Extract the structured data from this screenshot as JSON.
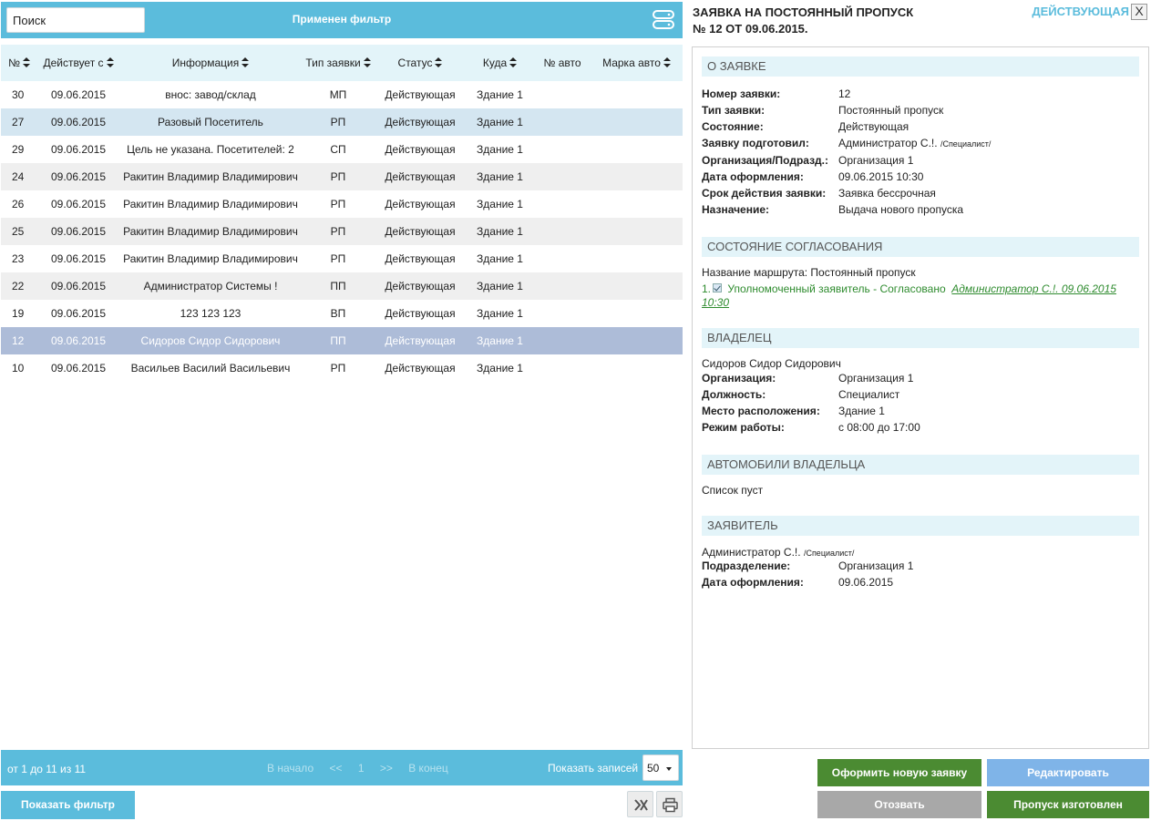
{
  "search": {
    "placeholder": "Поиск",
    "value": ""
  },
  "topbar": {
    "filter_title": "Применен фильтр",
    "db_icon": "database-icon"
  },
  "table": {
    "columns": [
      "№",
      "Действует с",
      "Информация",
      "Тип заявки",
      "Статус",
      "Куда",
      "№ авто",
      "Марка авто"
    ],
    "rows": [
      {
        "num": "30",
        "date": "09.06.2015",
        "info": "внос: завод/склад",
        "type": "МП",
        "status": "Действующая",
        "dest": "Здание 1",
        "auto_num": "",
        "auto_brand": ""
      },
      {
        "num": "27",
        "date": "09.06.2015",
        "info": "Разовый Посетитель",
        "type": "РП",
        "status": "Действующая",
        "dest": "Здание 1",
        "auto_num": "",
        "auto_brand": ""
      },
      {
        "num": "29",
        "date": "09.06.2015",
        "info": "Цель не указана. Посетителей: 2",
        "type": "СП",
        "status": "Действующая",
        "dest": "Здание 1",
        "auto_num": "",
        "auto_brand": ""
      },
      {
        "num": "24",
        "date": "09.06.2015",
        "info": "Ракитин Владимир Владимирович",
        "type": "РП",
        "status": "Действующая",
        "dest": "Здание 1",
        "auto_num": "",
        "auto_brand": ""
      },
      {
        "num": "26",
        "date": "09.06.2015",
        "info": "Ракитин Владимир Владимирович",
        "type": "РП",
        "status": "Действующая",
        "dest": "Здание 1",
        "auto_num": "",
        "auto_brand": ""
      },
      {
        "num": "25",
        "date": "09.06.2015",
        "info": "Ракитин Владимир Владимирович",
        "type": "РП",
        "status": "Действующая",
        "dest": "Здание 1",
        "auto_num": "",
        "auto_brand": ""
      },
      {
        "num": "23",
        "date": "09.06.2015",
        "info": "Ракитин Владимир Владимирович",
        "type": "РП",
        "status": "Действующая",
        "dest": "Здание 1",
        "auto_num": "",
        "auto_brand": ""
      },
      {
        "num": "22",
        "date": "09.06.2015",
        "info": "Администратор Системы !",
        "type": "ПП",
        "status": "Действующая",
        "dest": "Здание 1",
        "auto_num": "",
        "auto_brand": ""
      },
      {
        "num": "19",
        "date": "09.06.2015",
        "info": "123 123 123",
        "type": "ВП",
        "status": "Действующая",
        "dest": "Здание 1",
        "auto_num": "",
        "auto_brand": ""
      },
      {
        "num": "12",
        "date": "09.06.2015",
        "info": "Сидоров Сидор Сидорович",
        "type": "ПП",
        "status": "Действующая",
        "dest": "Здание 1",
        "auto_num": "",
        "auto_brand": ""
      },
      {
        "num": "10",
        "date": "09.06.2015",
        "info": "Васильев Василий Васильевич",
        "type": "РП",
        "status": "Действующая",
        "dest": "Здание 1",
        "auto_num": "",
        "auto_brand": ""
      }
    ]
  },
  "pager": {
    "range": "от 1 до 11 из 11",
    "first": "В начало",
    "prev": "<<",
    "page": "1",
    "next": ">>",
    "last": "В конец",
    "show_label": "Показать записей",
    "page_size": "50"
  },
  "bottom": {
    "show_filter": "Показать фильтр",
    "excel_icon": "excel-icon",
    "print_icon": "print-icon"
  },
  "detail": {
    "title_line1": "ЗАЯВКА НА ПОСТОЯННЫЙ ПРОПУСК",
    "title_line2": "№ 12 ОТ 09.06.2015.",
    "status": "ДЕЙСТВУЮЩАЯ",
    "close": "X",
    "about": {
      "header": "О ЗАЯВКЕ",
      "fields": [
        {
          "k": "Номер заявки:",
          "v": "12"
        },
        {
          "k": "Тип заявки:",
          "v": "Постоянный пропуск"
        },
        {
          "k": "Состояние:",
          "v": "Действующая"
        },
        {
          "k": "Заявку подготовил:",
          "v": "Администратор С.!.",
          "extra": "/Специалист/"
        },
        {
          "k": "Организация/Подразд.:",
          "v": "Организация 1"
        },
        {
          "k": "Дата оформления:",
          "v": "09.06.2015 10:30"
        },
        {
          "k": "Срок действия заявки:",
          "v": "Заявка бессрочная"
        },
        {
          "k": "Назначение:",
          "v": "Выдача нового пропуска"
        }
      ]
    },
    "approval": {
      "header": "СОСТОЯНИЕ СОГЛАСОВАНИЯ",
      "route": "Название маршрута: Постоянный пропуск",
      "step_num": "1.",
      "step_text": "Уполномоченный заявитель - Согласовано",
      "step_link": "Администратор С.!. 09.06.2015 10:30"
    },
    "owner": {
      "header": "ВЛАДЕЛЕЦ",
      "name": "Сидоров Сидор Сидорович",
      "fields": [
        {
          "k": "Организация:",
          "v": "Организация 1"
        },
        {
          "k": "Должность:",
          "v": "Специалист"
        },
        {
          "k": "Место расположения:",
          "v": "Здание 1"
        },
        {
          "k": "Режим работы:",
          "v": "с 08:00 до 17:00"
        }
      ]
    },
    "cars": {
      "header": "АВТОМОБИЛИ ВЛАДЕЛЬЦА",
      "empty": "Список пуст"
    },
    "applicant": {
      "header": "ЗАЯВИТЕЛЬ",
      "name": "Администратор С.!.",
      "name_extra": "/Специалист/",
      "fields": [
        {
          "k": "Подразделение:",
          "v": "Организация 1"
        },
        {
          "k": "Дата оформления:",
          "v": "09.06.2015"
        }
      ]
    }
  },
  "actions": {
    "new_request": "Оформить новую заявку",
    "edit": "Редактировать",
    "revoke": "Отозвать",
    "pass_made": "Пропуск изготовлен"
  },
  "colors": {
    "accent": "#5bbcdc",
    "green": "#4b8b32",
    "blue": "#7fb4e8",
    "gray": "#a8a8a8",
    "selected_row": "#adbcd8"
  }
}
